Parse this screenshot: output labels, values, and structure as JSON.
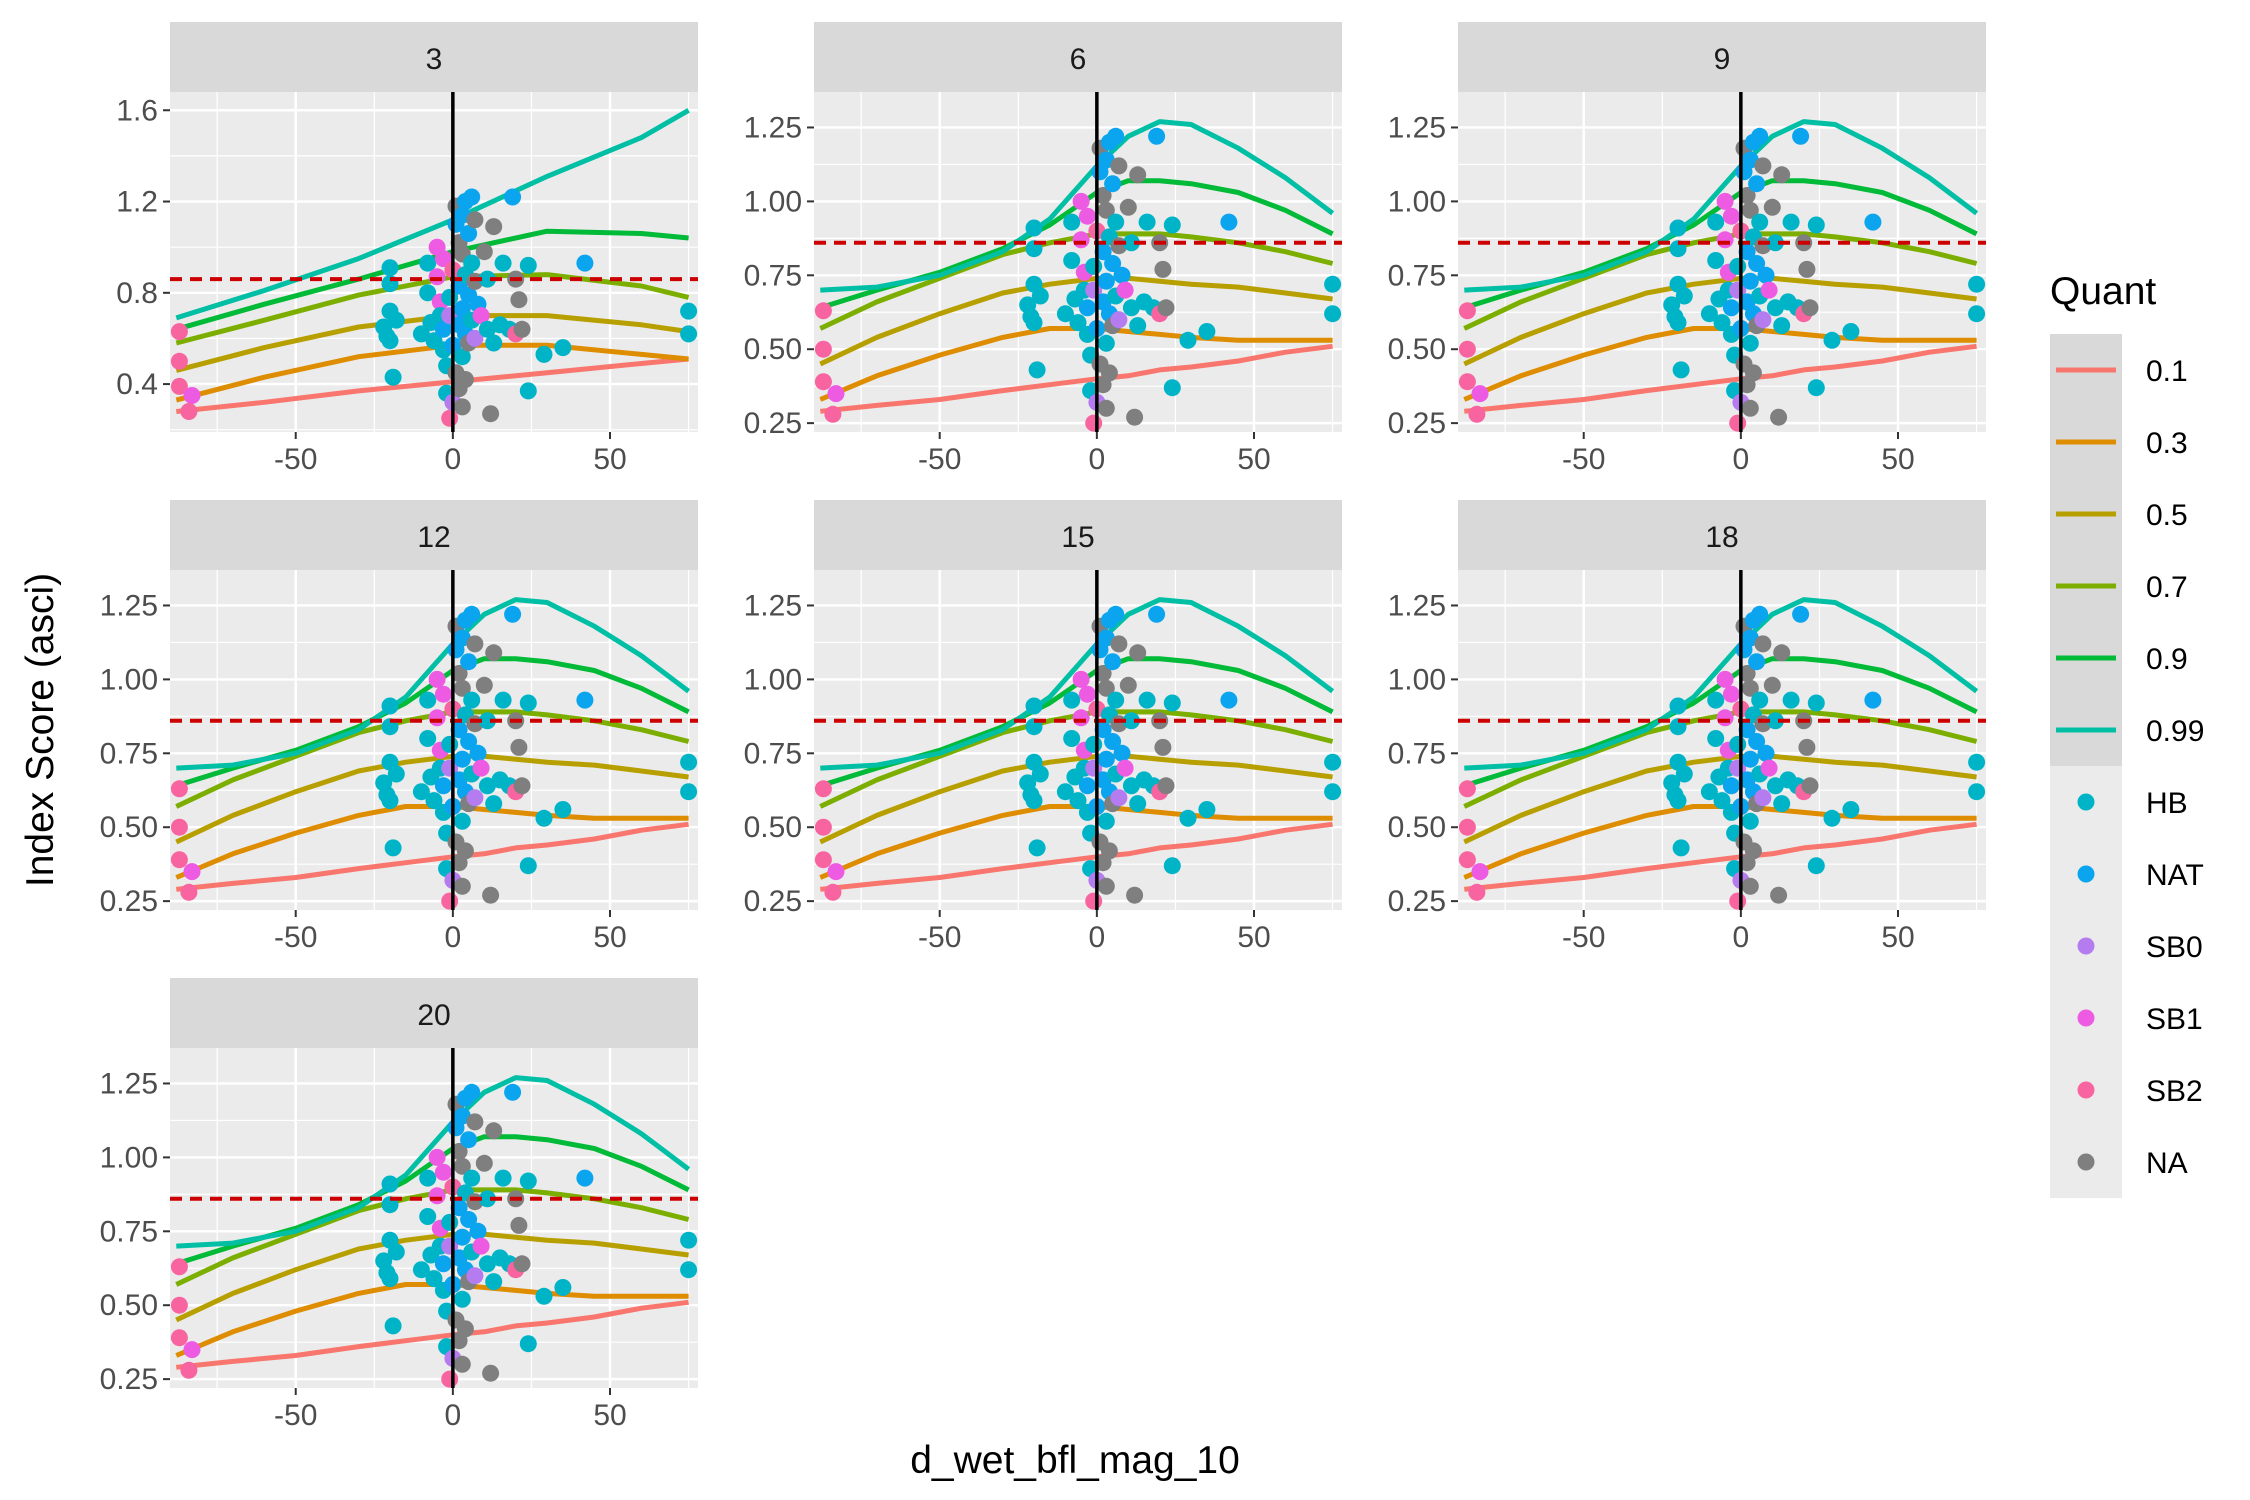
{
  "chart_data": {
    "type": "scatter",
    "facet_variable": "faceted panels",
    "panels": [
      "3",
      "6",
      "9",
      "12",
      "15",
      "18",
      "20"
    ],
    "xlabel": "d_wet_bfl_mag_10",
    "ylabel": "Index Score  (asci)",
    "xlim": [
      -90,
      78
    ],
    "x_ticks": [
      -50,
      0,
      50
    ],
    "x_tick_labels": [
      "-50",
      "0",
      "50"
    ],
    "panel_ylims": {
      "3": [
        0.19,
        1.68
      ],
      "6": [
        0.22,
        1.37
      ],
      "9": [
        0.22,
        1.37
      ],
      "12": [
        0.22,
        1.37
      ],
      "15": [
        0.22,
        1.37
      ],
      "18": [
        0.22,
        1.37
      ],
      "20": [
        0.22,
        1.37
      ]
    },
    "panel_yticks": {
      "3": [
        0.4,
        0.8,
        1.2,
        1.6
      ],
      "6": [
        0.25,
        0.5,
        0.75,
        1.0,
        1.25
      ],
      "9": [
        0.25,
        0.5,
        0.75,
        1.0,
        1.25
      ],
      "12": [
        0.25,
        0.5,
        0.75,
        1.0,
        1.25
      ],
      "15": [
        0.25,
        0.5,
        0.75,
        1.0,
        1.25
      ],
      "18": [
        0.25,
        0.5,
        0.75,
        1.0,
        1.25
      ],
      "20": [
        0.25,
        0.5,
        0.75,
        1.0,
        1.25
      ]
    },
    "panel_ytick_labels": {
      "3": [
        "0.4",
        "0.8",
        "1.2",
        "1.6"
      ],
      "6": [
        "0.25",
        "0.50",
        "0.75",
        "1.00",
        "1.25"
      ],
      "9": [
        "0.25",
        "0.50",
        "0.75",
        "1.00",
        "1.25"
      ],
      "12": [
        "0.25",
        "0.50",
        "0.75",
        "1.00",
        "1.25"
      ],
      "15": [
        "0.25",
        "0.50",
        "0.75",
        "1.00",
        "1.25"
      ],
      "18": [
        "0.25",
        "0.50",
        "0.75",
        "1.00",
        "1.25"
      ],
      "20": [
        "0.25",
        "0.50",
        "0.75",
        "1.00",
        "1.25"
      ]
    },
    "reference_lines": {
      "horizontal_dashed_y": 0.86,
      "horizontal_color": "#cc0000",
      "vertical_x": 0,
      "vertical_color": "#000000"
    },
    "quant_legend_title": "Quant",
    "quant_series": [
      {
        "name": "0.1",
        "color": "#F8766D"
      },
      {
        "name": "0.3",
        "color": "#DE8C00"
      },
      {
        "name": "0.5",
        "color": "#B79F00"
      },
      {
        "name": "0.7",
        "color": "#7CAE00"
      },
      {
        "name": "0.9",
        "color": "#00BA38"
      },
      {
        "name": "0.99",
        "color": "#00BFA4"
      }
    ],
    "curves_panel_3": {
      "x": [
        -88,
        -60,
        -30,
        0,
        30,
        60,
        75
      ],
      "0.1": [
        0.28,
        0.32,
        0.37,
        0.41,
        0.45,
        0.49,
        0.51
      ],
      "0.3": [
        0.33,
        0.43,
        0.52,
        0.57,
        0.57,
        0.53,
        0.51
      ],
      "0.5": [
        0.46,
        0.56,
        0.65,
        0.7,
        0.7,
        0.66,
        0.63
      ],
      "0.7": [
        0.58,
        0.68,
        0.79,
        0.87,
        0.88,
        0.83,
        0.78
      ],
      "0.9": [
        0.64,
        0.75,
        0.86,
        0.98,
        1.07,
        1.06,
        1.04
      ],
      "0.99": [
        0.69,
        0.81,
        0.95,
        1.12,
        1.31,
        1.48,
        1.6
      ]
    },
    "curves_other_panels": {
      "x": [
        -88,
        -70,
        -50,
        -30,
        -15,
        0,
        10,
        20,
        30,
        45,
        60,
        75
      ],
      "0.1": [
        0.29,
        0.31,
        0.33,
        0.36,
        0.38,
        0.4,
        0.41,
        0.43,
        0.44,
        0.46,
        0.49,
        0.51
      ],
      "0.3": [
        0.33,
        0.41,
        0.48,
        0.54,
        0.57,
        0.57,
        0.56,
        0.55,
        0.54,
        0.53,
        0.53,
        0.53
      ],
      "0.5": [
        0.45,
        0.54,
        0.62,
        0.69,
        0.72,
        0.74,
        0.74,
        0.73,
        0.72,
        0.71,
        0.69,
        0.67
      ],
      "0.7": [
        0.57,
        0.66,
        0.74,
        0.82,
        0.86,
        0.89,
        0.89,
        0.89,
        0.88,
        0.86,
        0.83,
        0.79
      ],
      "0.9": [
        0.64,
        0.7,
        0.76,
        0.84,
        0.92,
        1.03,
        1.07,
        1.07,
        1.06,
        1.03,
        0.97,
        0.89
      ],
      "0.99": [
        0.7,
        0.71,
        0.75,
        0.83,
        0.94,
        1.12,
        1.22,
        1.27,
        1.26,
        1.18,
        1.08,
        0.96
      ]
    },
    "point_legend": [
      {
        "name": "HB",
        "color": "#00B4C8"
      },
      {
        "name": "NAT",
        "color": "#0AA5EE"
      },
      {
        "name": "SB0",
        "color": "#B57CF0"
      },
      {
        "name": "SB1",
        "color": "#EE5BE3"
      },
      {
        "name": "SB2",
        "color": "#F8649F"
      },
      {
        "name": "NA",
        "color": "#7F7F7F"
      }
    ],
    "points": [
      {
        "x": -87,
        "y": 0.63,
        "g": "SB2"
      },
      {
        "x": -87,
        "y": 0.5,
        "g": "SB2"
      },
      {
        "x": -87,
        "y": 0.39,
        "g": "SB2"
      },
      {
        "x": -83,
        "y": 0.35,
        "g": "SB1"
      },
      {
        "x": -84,
        "y": 0.28,
        "g": "SB2"
      },
      {
        "x": -22,
        "y": 0.65,
        "g": "HB"
      },
      {
        "x": -21,
        "y": 0.61,
        "g": "HB"
      },
      {
        "x": -20,
        "y": 0.59,
        "g": "HB"
      },
      {
        "x": -20,
        "y": 0.91,
        "g": "HB"
      },
      {
        "x": -20,
        "y": 0.84,
        "g": "HB"
      },
      {
        "x": -20,
        "y": 0.72,
        "g": "HB"
      },
      {
        "x": -19,
        "y": 0.43,
        "g": "HB"
      },
      {
        "x": -18,
        "y": 0.68,
        "g": "HB"
      },
      {
        "x": -10,
        "y": 0.62,
        "g": "HB"
      },
      {
        "x": -8,
        "y": 0.93,
        "g": "HB"
      },
      {
        "x": -8,
        "y": 0.8,
        "g": "HB"
      },
      {
        "x": -7,
        "y": 0.67,
        "g": "HB"
      },
      {
        "x": -6,
        "y": 0.59,
        "g": "HB"
      },
      {
        "x": -5,
        "y": 1.0,
        "g": "SB1"
      },
      {
        "x": -5,
        "y": 0.87,
        "g": "SB1"
      },
      {
        "x": -4,
        "y": 0.76,
        "g": "SB1"
      },
      {
        "x": -4,
        "y": 0.7,
        "g": "HB"
      },
      {
        "x": -3,
        "y": 0.95,
        "g": "SB1"
      },
      {
        "x": -3,
        "y": 0.64,
        "g": "NAT"
      },
      {
        "x": -3,
        "y": 0.55,
        "g": "HB"
      },
      {
        "x": -2,
        "y": 0.48,
        "g": "HB"
      },
      {
        "x": -2,
        "y": 0.36,
        "g": "HB"
      },
      {
        "x": -1,
        "y": 0.78,
        "g": "HB"
      },
      {
        "x": -1,
        "y": 0.7,
        "g": "SB0"
      },
      {
        "x": -1,
        "y": 0.25,
        "g": "SB2"
      },
      {
        "x": 0,
        "y": 0.9,
        "g": "SB2"
      },
      {
        "x": 0,
        "y": 0.57,
        "g": "NAT"
      },
      {
        "x": 0,
        "y": 0.32,
        "g": "SB0"
      },
      {
        "x": 1,
        "y": 1.18,
        "g": "NA"
      },
      {
        "x": 1,
        "y": 1.1,
        "g": "NAT"
      },
      {
        "x": 1,
        "y": 0.45,
        "g": "NA"
      },
      {
        "x": 2,
        "y": 1.02,
        "g": "NA"
      },
      {
        "x": 2,
        "y": 0.83,
        "g": "NAT"
      },
      {
        "x": 2,
        "y": 0.66,
        "g": "NAT"
      },
      {
        "x": 2,
        "y": 0.38,
        "g": "NA"
      },
      {
        "x": 3,
        "y": 1.14,
        "g": "NAT"
      },
      {
        "x": 3,
        "y": 0.97,
        "g": "NA"
      },
      {
        "x": 3,
        "y": 0.73,
        "g": "NAT"
      },
      {
        "x": 3,
        "y": 0.52,
        "g": "HB"
      },
      {
        "x": 3,
        "y": 0.3,
        "g": "NA"
      },
      {
        "x": 4,
        "y": 1.2,
        "g": "NAT"
      },
      {
        "x": 4,
        "y": 0.88,
        "g": "HB"
      },
      {
        "x": 4,
        "y": 0.62,
        "g": "NAT"
      },
      {
        "x": 4,
        "y": 0.42,
        "g": "NA"
      },
      {
        "x": 5,
        "y": 1.06,
        "g": "NAT"
      },
      {
        "x": 5,
        "y": 0.79,
        "g": "NAT"
      },
      {
        "x": 5,
        "y": 0.58,
        "g": "NA"
      },
      {
        "x": 6,
        "y": 1.22,
        "g": "NAT"
      },
      {
        "x": 6,
        "y": 0.93,
        "g": "HB"
      },
      {
        "x": 6,
        "y": 0.68,
        "g": "HB"
      },
      {
        "x": 7,
        "y": 1.12,
        "g": "NA"
      },
      {
        "x": 7,
        "y": 0.85,
        "g": "NA"
      },
      {
        "x": 7,
        "y": 0.6,
        "g": "SB0"
      },
      {
        "x": 8,
        "y": 0.75,
        "g": "NAT"
      },
      {
        "x": 9,
        "y": 0.7,
        "g": "SB1"
      },
      {
        "x": 10,
        "y": 0.98,
        "g": "NA"
      },
      {
        "x": 11,
        "y": 0.86,
        "g": "HB"
      },
      {
        "x": 11,
        "y": 0.64,
        "g": "HB"
      },
      {
        "x": 12,
        "y": 0.27,
        "g": "NA"
      },
      {
        "x": 13,
        "y": 1.09,
        "g": "NA"
      },
      {
        "x": 13,
        "y": 0.58,
        "g": "HB"
      },
      {
        "x": 15,
        "y": 0.66,
        "g": "HB"
      },
      {
        "x": 16,
        "y": 0.93,
        "g": "HB"
      },
      {
        "x": 18,
        "y": 0.64,
        "g": "HB"
      },
      {
        "x": 19,
        "y": 1.22,
        "g": "NAT"
      },
      {
        "x": 20,
        "y": 0.86,
        "g": "NA"
      },
      {
        "x": 20,
        "y": 0.62,
        "g": "SB2"
      },
      {
        "x": 21,
        "y": 0.77,
        "g": "NA"
      },
      {
        "x": 22,
        "y": 0.64,
        "g": "NA"
      },
      {
        "x": 24,
        "y": 0.92,
        "g": "HB"
      },
      {
        "x": 24,
        "y": 0.37,
        "g": "HB"
      },
      {
        "x": 29,
        "y": 0.53,
        "g": "HB"
      },
      {
        "x": 35,
        "y": 0.56,
        "g": "HB"
      },
      {
        "x": 42,
        "y": 0.93,
        "g": "NAT"
      },
      {
        "x": 75,
        "y": 0.72,
        "g": "HB"
      },
      {
        "x": 75,
        "y": 0.62,
        "g": "HB"
      }
    ]
  }
}
